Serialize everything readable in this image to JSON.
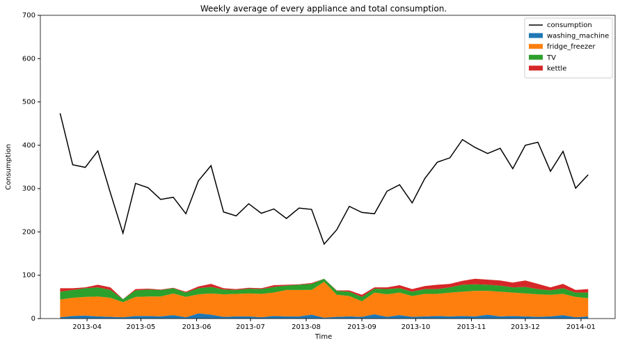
{
  "chart_data": {
    "type": "line",
    "title": "Weekly average of every appliance and total consumption.",
    "xlabel": "Time",
    "ylabel": "Consumption",
    "x": [
      "2013-03-17",
      "2013-03-24",
      "2013-03-31",
      "2013-04-07",
      "2013-04-14",
      "2013-04-21",
      "2013-04-28",
      "2013-05-05",
      "2013-05-12",
      "2013-05-19",
      "2013-05-26",
      "2013-06-02",
      "2013-06-09",
      "2013-06-16",
      "2013-06-23",
      "2013-06-30",
      "2013-07-07",
      "2013-07-14",
      "2013-07-21",
      "2013-07-28",
      "2013-08-04",
      "2013-08-11",
      "2013-08-18",
      "2013-08-25",
      "2013-09-01",
      "2013-09-08",
      "2013-09-15",
      "2013-09-22",
      "2013-09-29",
      "2013-10-06",
      "2013-10-13",
      "2013-10-20",
      "2013-10-27",
      "2013-11-03",
      "2013-11-10",
      "2013-11-17",
      "2013-11-24",
      "2013-12-01",
      "2013-12-08",
      "2013-12-15",
      "2013-12-22",
      "2013-12-29",
      "2014-01-05"
    ],
    "series": [
      {
        "name": "consumption",
        "kind": "line",
        "color": "#000000",
        "values": [
          474,
          355,
          349,
          387,
          290,
          197,
          312,
          302,
          275,
          280,
          242,
          318,
          353,
          246,
          237,
          265,
          243,
          253,
          231,
          255,
          252,
          172,
          205,
          259,
          245,
          242,
          294,
          309,
          267,
          323,
          361,
          371,
          413,
          395,
          381,
          393,
          346,
          400,
          407,
          340,
          386,
          301,
          332
        ]
      },
      {
        "name": "washing_machine",
        "kind": "stacked_area",
        "color": "#1f77b4",
        "values": [
          3,
          6,
          7,
          5,
          4,
          3,
          6,
          6,
          5,
          8,
          3,
          12,
          9,
          4,
          5,
          5,
          3,
          6,
          5,
          5,
          9,
          2,
          4,
          5,
          4,
          10,
          4,
          8,
          4,
          5,
          6,
          5,
          6,
          5,
          9,
          5,
          6,
          5,
          4,
          5,
          8,
          3,
          5
        ]
      },
      {
        "name": "fridge_freezer",
        "kind": "stacked_area",
        "color": "#ff7f0e",
        "values": [
          41,
          42,
          43,
          46,
          44,
          35,
          44,
          45,
          46,
          50,
          47,
          44,
          49,
          52,
          52,
          53,
          54,
          54,
          61,
          61,
          57,
          83,
          51,
          47,
          36,
          50,
          52,
          52,
          48,
          52,
          51,
          55,
          56,
          59,
          55,
          57,
          54,
          53,
          52,
          50,
          49,
          47,
          42
        ]
      },
      {
        "name": "TV",
        "kind": "stacked_area",
        "color": "#2ca02c",
        "values": [
          18,
          18,
          20,
          21,
          18,
          7,
          15,
          16,
          15,
          12,
          10,
          14,
          15,
          11,
          9,
          11,
          11,
          13,
          10,
          12,
          14,
          7,
          9,
          10,
          10,
          9,
          12,
          10,
          10,
          11,
          11,
          12,
          16,
          15,
          14,
          14,
          12,
          15,
          12,
          10,
          13,
          10,
          13
        ]
      },
      {
        "name": "kettle",
        "kind": "stacked_area",
        "color": "#d62728",
        "values": [
          8,
          4,
          2,
          6,
          6,
          0,
          3,
          2,
          1,
          1,
          2,
          4,
          7,
          3,
          2,
          2,
          2,
          4,
          2,
          1,
          2,
          0,
          1,
          3,
          5,
          3,
          4,
          7,
          6,
          7,
          10,
          8,
          9,
          13,
          12,
          12,
          11,
          15,
          12,
          7,
          10,
          6,
          8
        ]
      }
    ],
    "xlim": [
      "2013-03-06",
      "2014-01-20"
    ],
    "xticks": [
      {
        "value": "2013-04-01",
        "label": "2013-04"
      },
      {
        "value": "2013-05-01",
        "label": "2013-05"
      },
      {
        "value": "2013-06-01",
        "label": "2013-06"
      },
      {
        "value": "2013-07-01",
        "label": "2013-07"
      },
      {
        "value": "2013-08-01",
        "label": "2013-08"
      },
      {
        "value": "2013-09-01",
        "label": "2013-09"
      },
      {
        "value": "2013-10-01",
        "label": "2013-10"
      },
      {
        "value": "2013-11-01",
        "label": "2013-11"
      },
      {
        "value": "2013-12-01",
        "label": "2013-12"
      },
      {
        "value": "2014-01-01",
        "label": "2014-01"
      }
    ],
    "ylim": [
      0,
      700
    ],
    "yticks": [
      0,
      100,
      200,
      300,
      400,
      500,
      600,
      700
    ],
    "legend": "upper right"
  }
}
